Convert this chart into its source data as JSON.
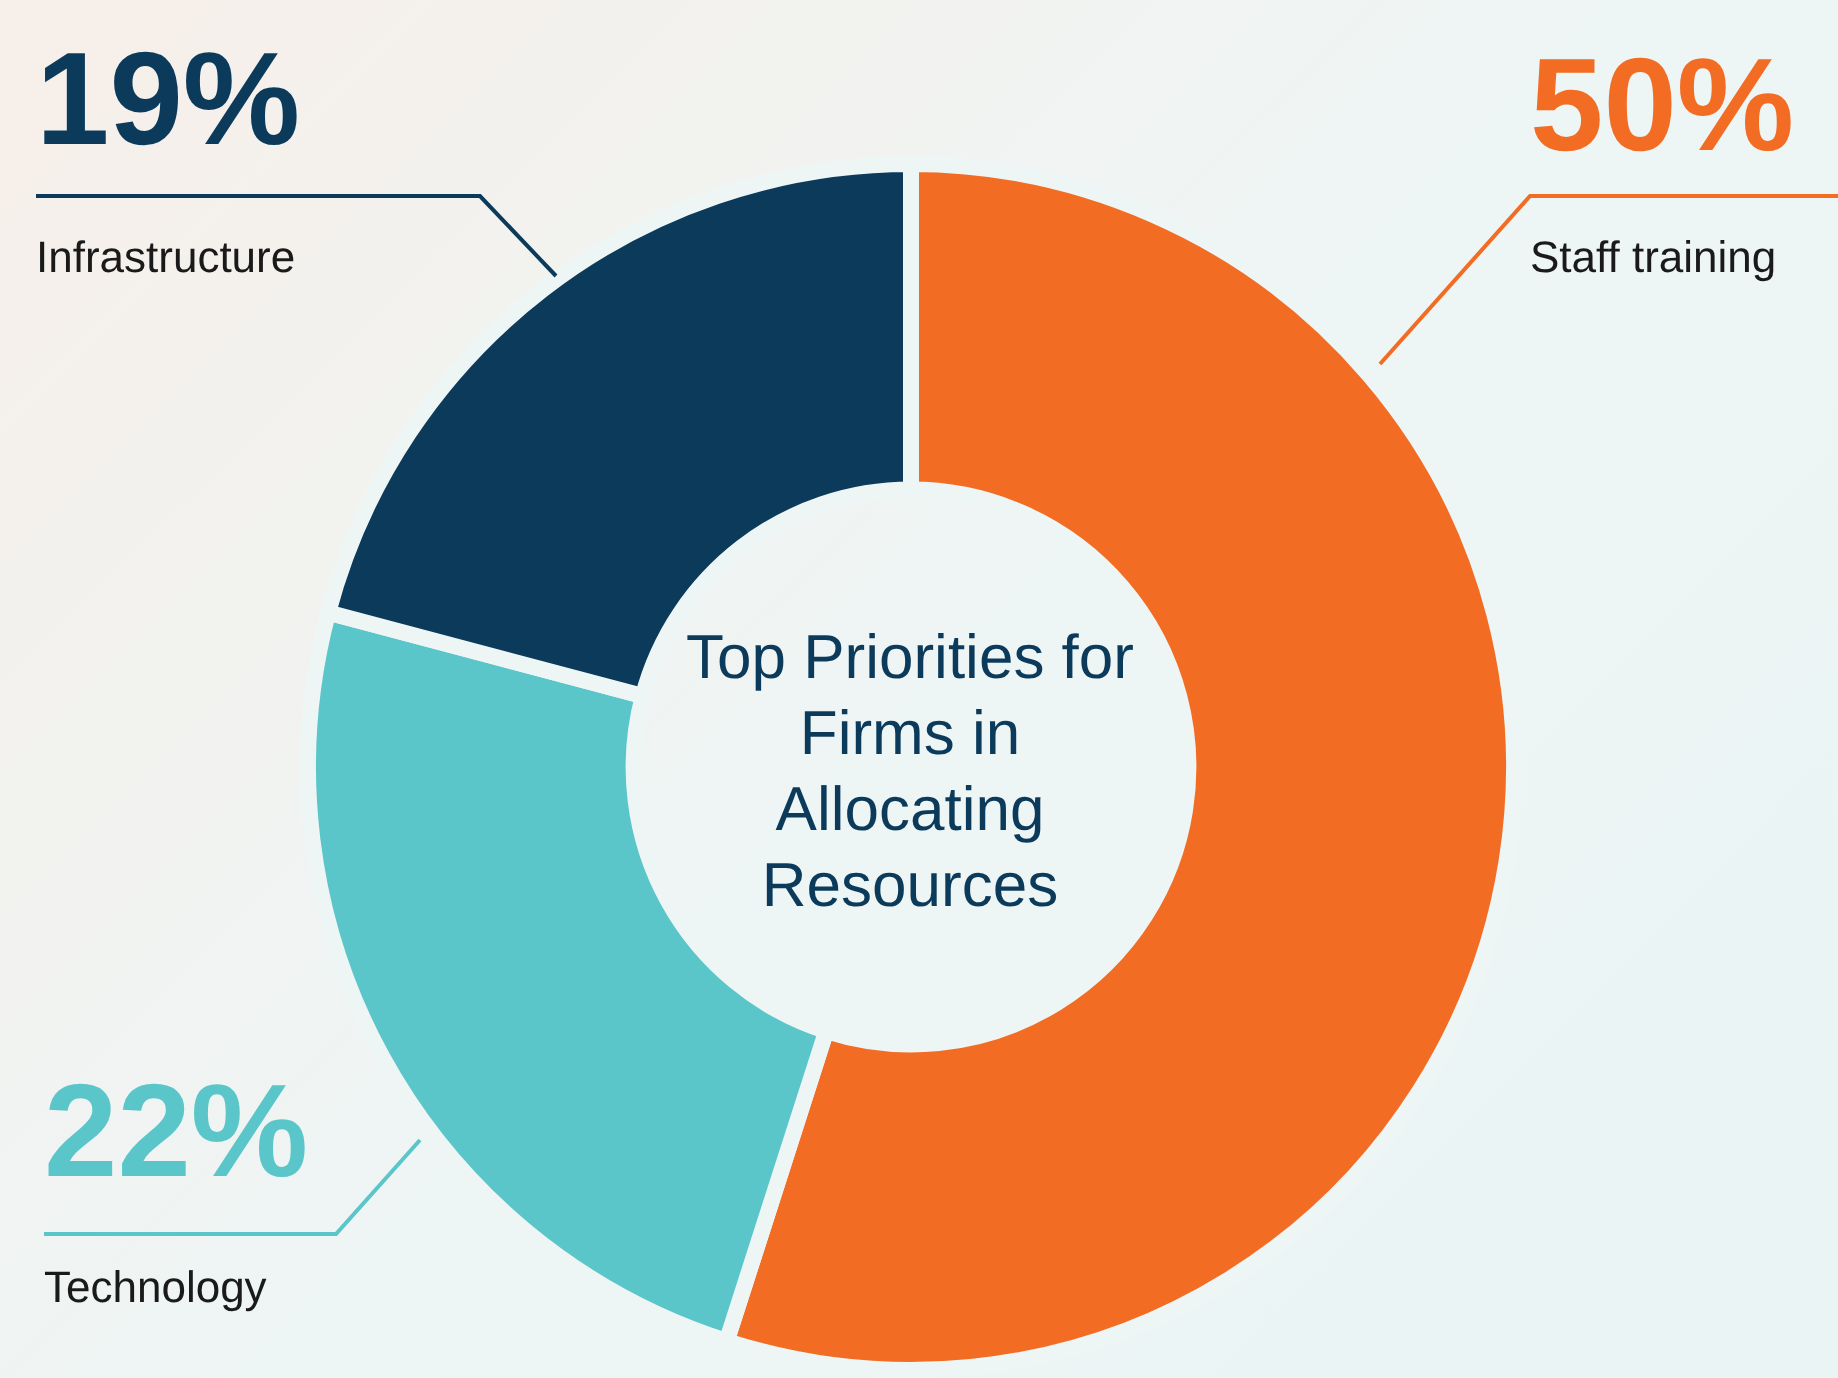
{
  "chart_data": {
    "type": "donut",
    "title": "Top Priorities for Firms in Allocating Resources",
    "categories": [
      "Staff training",
      "Technology",
      "Infrastructure"
    ],
    "values": [
      50,
      22,
      19
    ],
    "value_labels": [
      "50%",
      "22%",
      "19%"
    ],
    "colors": [
      "#f26c24",
      "#5bc6c9",
      "#0b3a5a"
    ],
    "legend": false
  }
}
